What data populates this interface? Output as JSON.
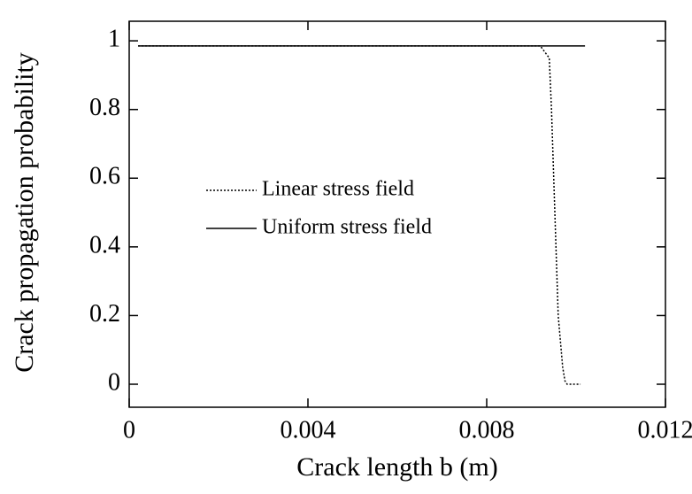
{
  "chart_data": {
    "type": "line",
    "x_label": "Crack length b (m)",
    "y_label": "Crack propagation probability",
    "xlim": [
      0,
      0.012
    ],
    "ylim": [
      -0.067,
      1.057
    ],
    "xticks": [
      0,
      0.004,
      0.008,
      0.012
    ],
    "yticks": [
      0,
      0.2,
      0.4,
      0.6,
      0.8,
      1
    ],
    "series": [
      {
        "name": "Linear stress field",
        "color": "#000000",
        "dash": "dotted",
        "x": [
          0.0002,
          0.0092,
          0.0094,
          0.00945,
          0.0095,
          0.00955,
          0.0096,
          0.0097,
          0.00975,
          0.0098,
          0.0101
        ],
        "values": [
          0.985,
          0.985,
          0.95,
          0.8,
          0.6,
          0.4,
          0.2,
          0.05,
          0.01,
          0,
          0
        ]
      },
      {
        "name": "Uniform stress field",
        "color": "#000000",
        "dash": "solid",
        "x": [
          0.0002,
          0.0102
        ],
        "values": [
          0.985,
          0.985
        ]
      }
    ]
  }
}
